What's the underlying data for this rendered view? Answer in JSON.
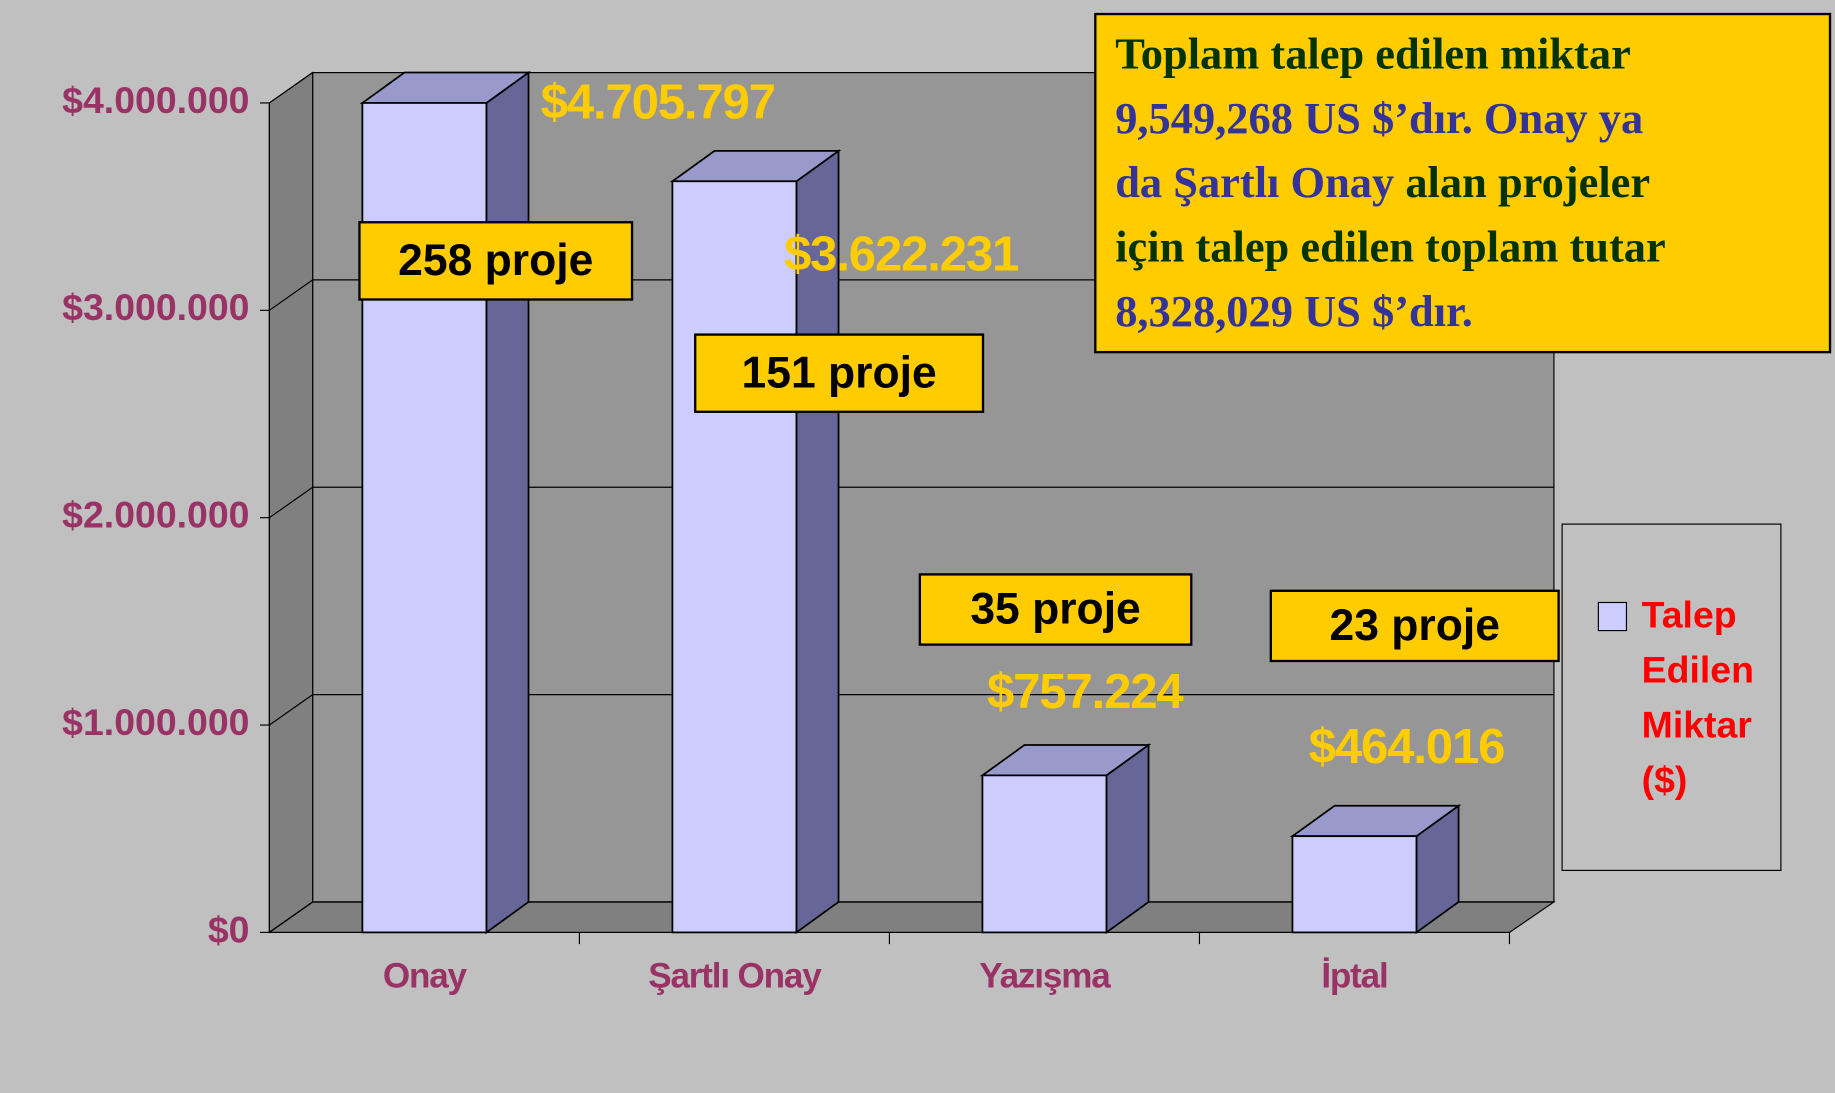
{
  "chart_data": {
    "type": "bar3d",
    "categories": [
      "Onay",
      "Şartlı Onay",
      "Yazışma",
      "İptal"
    ],
    "series": [
      {
        "name": "Talep Edilen Miktar ($)",
        "color": "#ccccff",
        "values": [
          4705797,
          3622231,
          757224,
          464016
        ],
        "value_labels": [
          "$4.705.797",
          "$3.622.231",
          "$757.224",
          "$464.016"
        ]
      }
    ],
    "ylim": [
      0,
      4000000
    ],
    "yticks": [
      {
        "value": 0,
        "label": "$0"
      },
      {
        "value": 1000000,
        "label": "$1.000.000"
      },
      {
        "value": 2000000,
        "label": "$2.000.000"
      },
      {
        "value": 3000000,
        "label": "$3.000.000"
      },
      {
        "value": 4000000,
        "label": "$4.000.000"
      }
    ],
    "grid": true,
    "legend": "right",
    "annotations": [
      "258 proje",
      "151 proje",
      "35 proje",
      "23 proje"
    ],
    "note": [
      [
        {
          "text": "Toplam talep edilen miktar",
          "color": "#003300"
        }
      ],
      [
        {
          "text": "9,549,268 US $’dır. Onay  ya",
          "color": "#333399"
        }
      ],
      [
        {
          "text": "da Şartlı Onay",
          "color": "#333399"
        },
        {
          "text": " alan projeler",
          "color": "#003300"
        }
      ],
      [
        {
          "text": "için talep edilen toplam tutar",
          "color": "#003300"
        }
      ],
      [
        {
          "text": "8,328,029 US $’dır.",
          "color": "#333399"
        }
      ]
    ]
  }
}
